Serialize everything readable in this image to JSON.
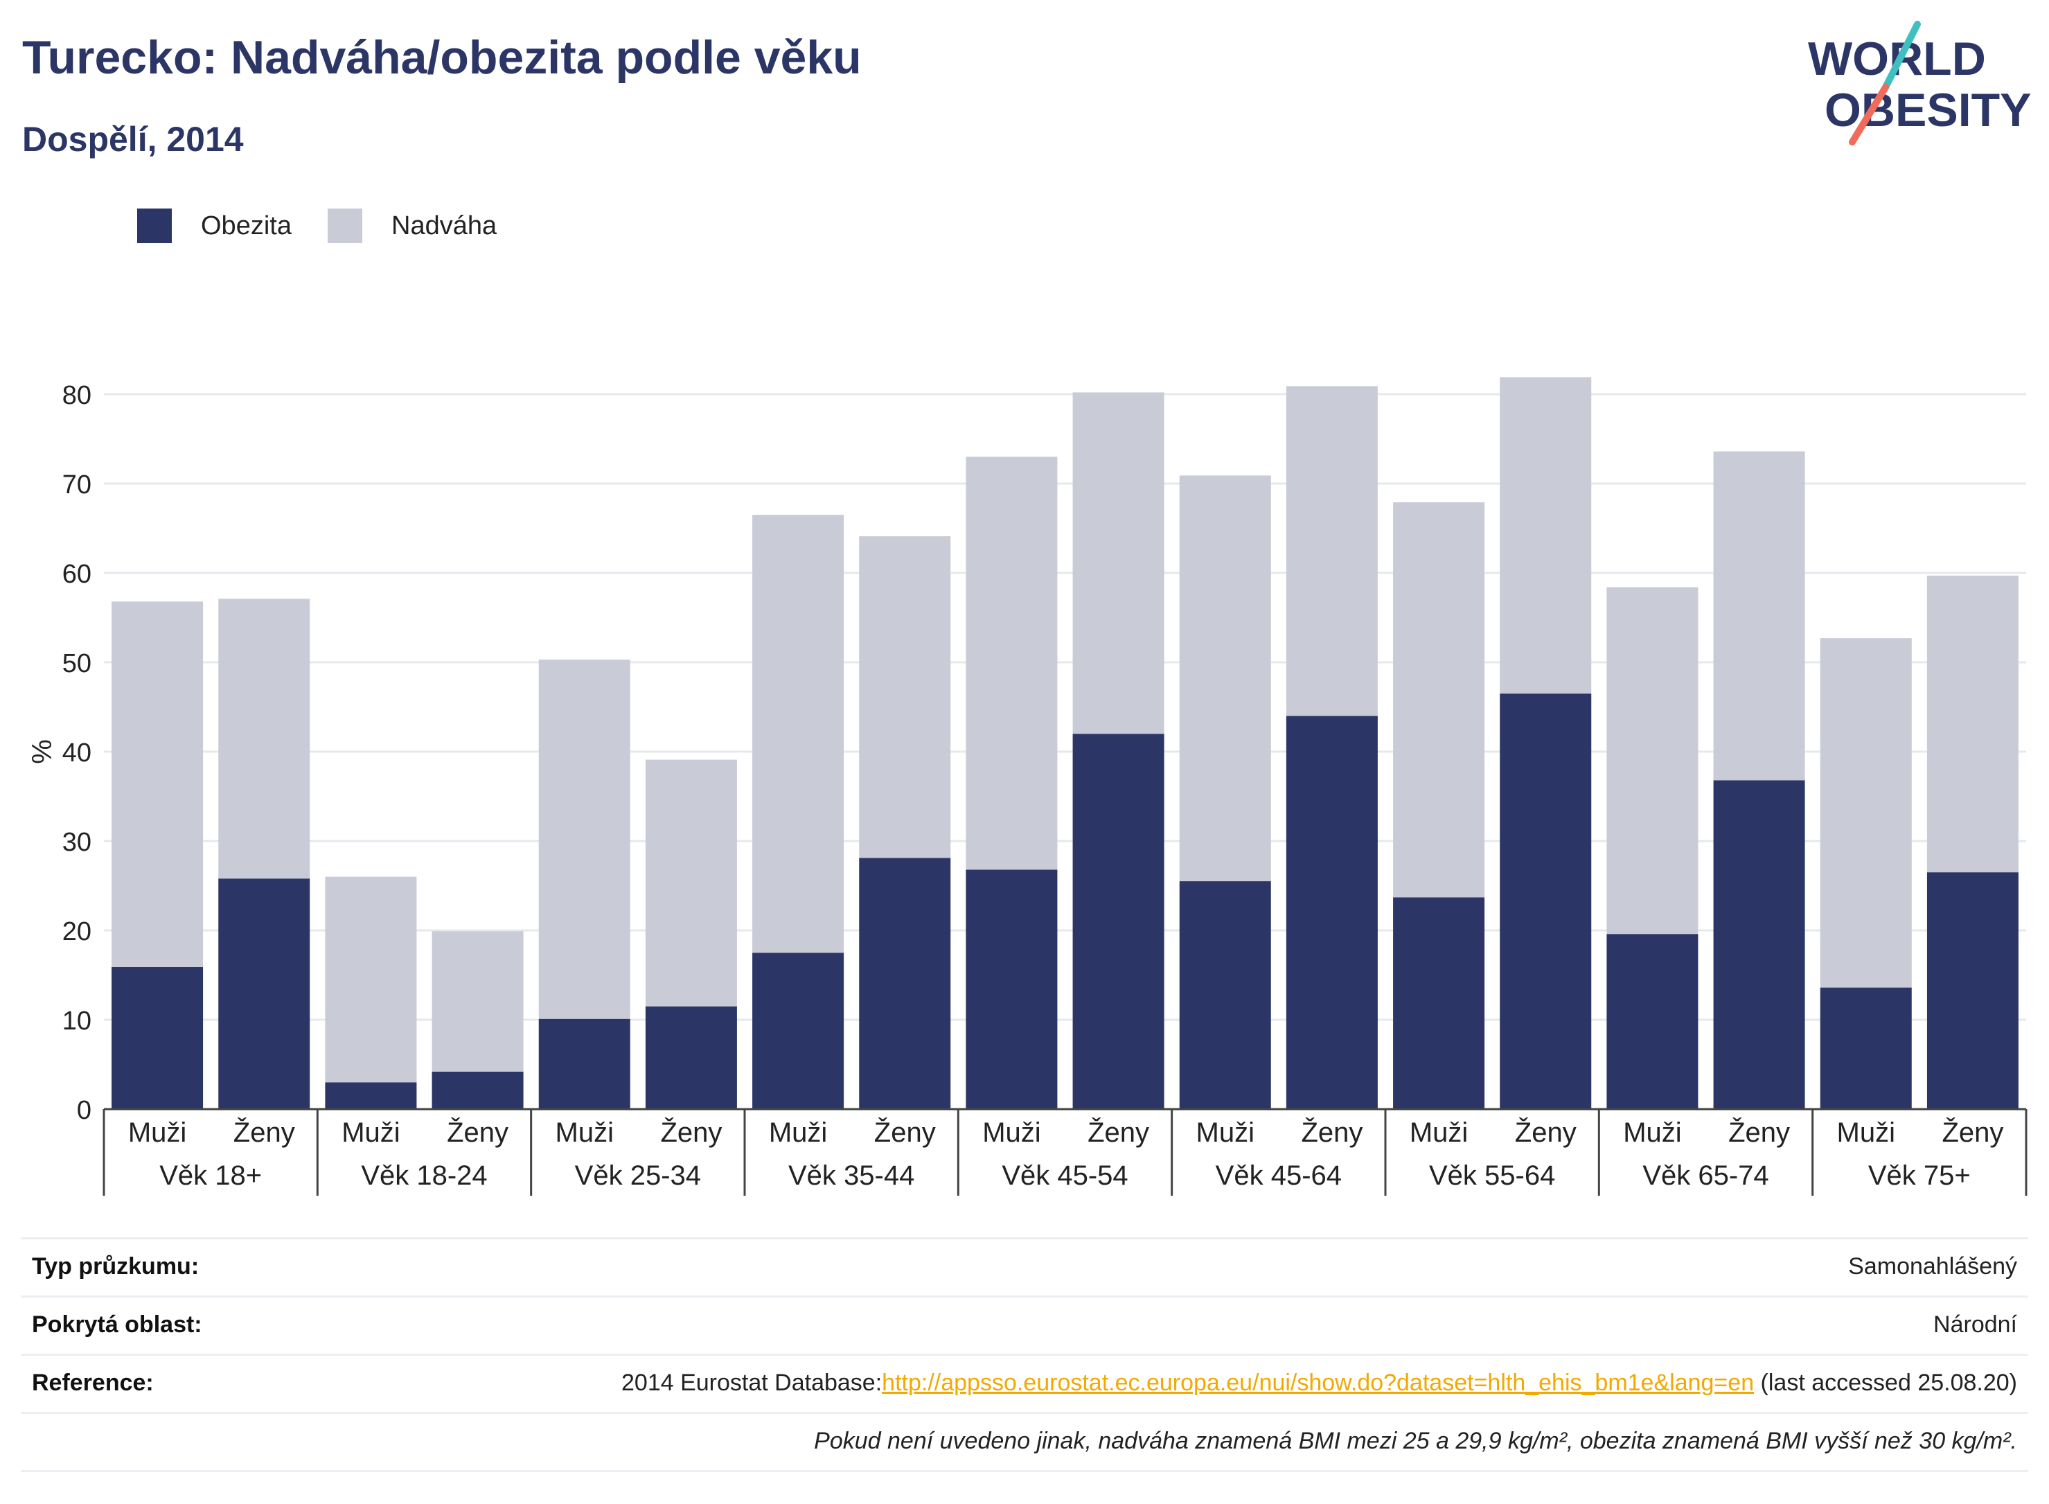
{
  "header": {
    "title": "Turecko: Nadváha/obezita podle věku",
    "subtitle": "Dospělí, 2014"
  },
  "logo": {
    "line1": "WORLD",
    "line2": "OBESITY",
    "accent_colors": [
      "#3fbfbf",
      "#f06b5a"
    ],
    "text_color": "#2b3566"
  },
  "legend": [
    {
      "label": "Obezita",
      "color": "#2b3566"
    },
    {
      "label": "Nadváha",
      "color": "#c9cbd6"
    }
  ],
  "chart_data": {
    "type": "bar",
    "stacked": true,
    "ylabel": "%",
    "ylim": [
      0,
      80
    ],
    "yticks": [
      0,
      10,
      20,
      30,
      40,
      50,
      60,
      70,
      80
    ],
    "grid": true,
    "legend_position": "top-left",
    "groups": [
      "Věk 18+",
      "Věk 18-24",
      "Věk 25-34",
      "Věk 35-44",
      "Věk 45-54",
      "Věk 45-64",
      "Věk 55-64",
      "Věk 65-74",
      "Věk 75+"
    ],
    "subcategories": [
      "Muži",
      "Ženy"
    ],
    "series": [
      {
        "name": "Obezita",
        "color": "#2b3566",
        "values": [
          15.9,
          25.8,
          3.0,
          4.2,
          10.1,
          11.5,
          17.5,
          28.1,
          26.8,
          42.0,
          25.5,
          44.0,
          23.7,
          46.5,
          19.6,
          36.8,
          13.6,
          26.5
        ]
      },
      {
        "name": "Nadváha",
        "color": "#c9cbd6",
        "values": [
          40.9,
          31.3,
          23.0,
          15.7,
          40.2,
          27.6,
          49.0,
          36.0,
          46.2,
          38.2,
          45.4,
          36.9,
          44.2,
          35.4,
          38.8,
          36.8,
          39.1,
          33.2
        ]
      }
    ]
  },
  "info": {
    "survey_label": "Typ průzkumu:",
    "survey_value": "Samonahlášený",
    "area_label": "Pokrytá oblast:",
    "area_value": "Národní",
    "ref_label": "Reference:",
    "ref_prefix": "2014 Eurostat Database:",
    "ref_link": "http://appsso.eurostat.ec.europa.eu/nui/show.do?dataset=hlth_ehis_bm1e&lang=en",
    "ref_suffix": " (last accessed 25.08.20)",
    "note": "Pokud není uvedeno jinak, nadváha znamená BMI mezi 25 a 29,9 kg/m², obezita znamená BMI vyšší než 30 kg/m²."
  }
}
